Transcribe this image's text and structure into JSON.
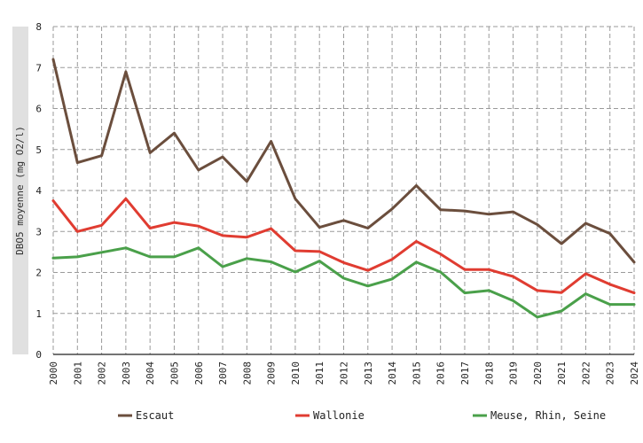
{
  "chart_data": {
    "type": "line",
    "title": "",
    "xlabel": "",
    "ylabel": "DBO5 moyenne (mg O2/l)",
    "ylim": [
      0,
      8
    ],
    "yticks": [
      0,
      1,
      2,
      3,
      4,
      5,
      6,
      7,
      8
    ],
    "grid": true,
    "legend_position": "bottom",
    "x": [
      "2000",
      "2001",
      "2002",
      "2003",
      "2004",
      "2005",
      "2006",
      "2007",
      "2008",
      "2009",
      "2010",
      "2011",
      "2012",
      "2013",
      "2014",
      "2015",
      "2016",
      "2017",
      "2018",
      "2019",
      "2020",
      "2021",
      "2022",
      "2023",
      "2024"
    ],
    "series": [
      {
        "name": "Escaut",
        "color": "#6b4e3d",
        "values": [
          7.2,
          4.68,
          4.85,
          6.9,
          4.92,
          5.4,
          4.5,
          4.82,
          4.22,
          5.2,
          3.8,
          3.1,
          3.27,
          3.08,
          3.55,
          4.12,
          3.53,
          3.5,
          3.42,
          3.48,
          3.17,
          2.7,
          3.2,
          2.95,
          2.25
        ]
      },
      {
        "name": "Wallonie",
        "color": "#e03c31",
        "values": [
          3.75,
          3.0,
          3.15,
          3.8,
          3.08,
          3.22,
          3.13,
          2.9,
          2.86,
          3.07,
          2.53,
          2.51,
          2.24,
          2.05,
          2.32,
          2.76,
          2.45,
          2.07,
          2.07,
          1.9,
          1.56,
          1.51,
          1.97,
          1.71,
          1.5
        ]
      },
      {
        "name": "Meuse, Rhin, Seine",
        "color": "#4aa04a",
        "values": [
          2.35,
          2.38,
          2.49,
          2.6,
          2.38,
          2.38,
          2.6,
          2.14,
          2.34,
          2.26,
          2.01,
          2.28,
          1.86,
          1.67,
          1.84,
          2.25,
          2.01,
          1.5,
          1.56,
          1.31,
          0.91,
          1.06,
          1.48,
          1.22,
          1.22
        ]
      }
    ]
  }
}
